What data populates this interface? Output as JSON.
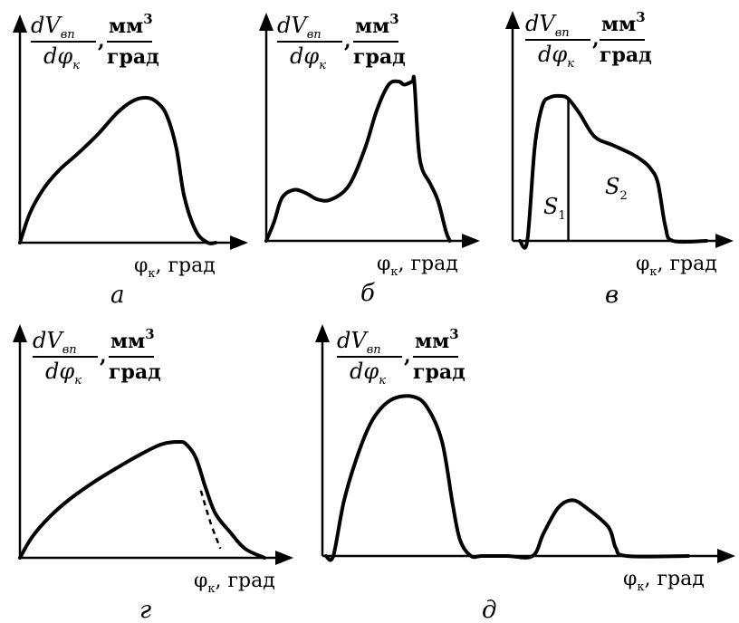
{
  "ylabel": {
    "num_d": "d",
    "num_V": "V",
    "num_sub": "вп",
    "den_d": "d",
    "den_phi": "φ",
    "den_sub": "к",
    "comma": ",",
    "unit_num": "мм",
    "unit_sup": "3",
    "unit_den": "град"
  },
  "xlabel": {
    "phi": "φ",
    "sub": "к",
    "rest": ", град"
  },
  "chart_data": [
    {
      "type": "line",
      "caption": "а",
      "x": [
        0,
        0.05,
        0.12,
        0.2,
        0.3,
        0.4,
        0.5,
        0.58,
        0.65,
        0.7,
        0.75,
        0.8,
        0.84,
        0.9,
        0.96,
        1.0
      ],
      "y": [
        0,
        0.2,
        0.37,
        0.5,
        0.62,
        0.75,
        0.9,
        0.98,
        1.0,
        0.97,
        0.88,
        0.65,
        0.32,
        0.08,
        0.0,
        0.0
      ]
    },
    {
      "type": "line",
      "caption": "б",
      "x": [
        0,
        0.04,
        0.08,
        0.14,
        0.2,
        0.26,
        0.33,
        0.42,
        0.5,
        0.56,
        0.62,
        0.67,
        0.7,
        0.74,
        0.75,
        0.77,
        0.79,
        0.83,
        0.87,
        0.91,
        0.93
      ],
      "y": [
        0,
        0.12,
        0.27,
        0.32,
        0.3,
        0.26,
        0.26,
        0.35,
        0.58,
        0.82,
        0.98,
        1.0,
        0.98,
        1.0,
        1.0,
        0.6,
        0.45,
        0.36,
        0.25,
        0.06,
        0.0
      ],
      "x_end": 1.0
    },
    {
      "type": "line",
      "caption": "в",
      "x": [
        0,
        0.04,
        0.08,
        0.12,
        0.16,
        0.22,
        0.26,
        0.32,
        0.4,
        0.5,
        0.6,
        0.66,
        0.7,
        0.74,
        0.78,
        0.82,
        1.0
      ],
      "y": [
        0,
        0.0,
        0.65,
        0.93,
        0.99,
        1.0,
        0.98,
        0.88,
        0.72,
        0.66,
        0.6,
        0.55,
        0.5,
        0.4,
        0.1,
        0.0,
        0.0
      ],
      "divider_x": 0.26,
      "region_labels": [
        {
          "letter": "S",
          "sub": "1"
        },
        {
          "letter": "S",
          "sub": "2"
        }
      ]
    },
    {
      "type": "line",
      "caption": "г",
      "x": [
        0,
        0.05,
        0.12,
        0.2,
        0.3,
        0.4,
        0.5,
        0.58,
        0.65,
        0.68,
        0.72,
        0.76,
        0.8,
        0.86,
        0.92,
        1.0
      ],
      "y": [
        0,
        0.18,
        0.35,
        0.5,
        0.65,
        0.78,
        0.9,
        0.98,
        1.0,
        0.98,
        0.86,
        0.6,
        0.38,
        0.22,
        0.08,
        0.0
      ],
      "dashed_branch": {
        "x": [
          0.74,
          0.78,
          0.82
        ],
        "y": [
          0.58,
          0.3,
          0.08
        ]
      }
    },
    {
      "type": "line",
      "caption": "д",
      "x": [
        0,
        0.02,
        0.05,
        0.09,
        0.13,
        0.18,
        0.24,
        0.28,
        0.32,
        0.35,
        0.37,
        0.4,
        0.43,
        0.5,
        0.57,
        0.6,
        0.64,
        0.68,
        0.72,
        0.78,
        0.8,
        0.83,
        1.0
      ],
      "y": [
        0,
        0.0,
        0.35,
        0.65,
        0.86,
        0.98,
        1.0,
        0.93,
        0.72,
        0.32,
        0.1,
        0.0,
        0.0,
        0.0,
        0.0,
        0.14,
        0.3,
        0.35,
        0.3,
        0.18,
        0.05,
        0.0,
        0.0
      ]
    }
  ]
}
